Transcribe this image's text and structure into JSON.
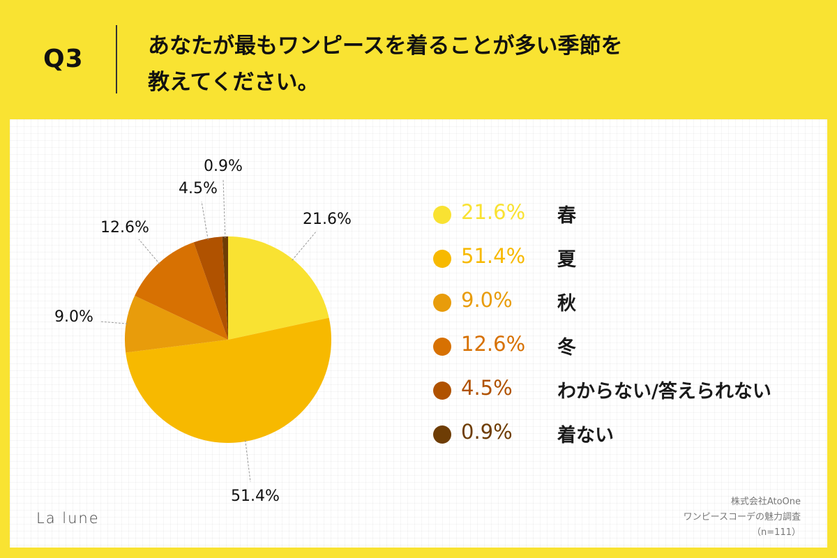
{
  "header": {
    "question_number": "Q3",
    "question_line1": "あなたが最もワンピースを着ることが多い季節を",
    "question_line2": "教えてください。"
  },
  "chart_data": {
    "type": "pie",
    "slices": [
      {
        "label": "春",
        "value": 21.6,
        "display": "21.6%",
        "color": "#f9e232"
      },
      {
        "label": "夏",
        "value": 51.4,
        "display": "51.4%",
        "color": "#f7b900"
      },
      {
        "label": "秋",
        "value": 9.0,
        "display": "9.0%",
        "color": "#e89c0b"
      },
      {
        "label": "冬",
        "value": 12.6,
        "display": "12.6%",
        "color": "#d77102"
      },
      {
        "label": "わからない/答えられない",
        "value": 4.5,
        "display": "4.5%",
        "color": "#b05200"
      },
      {
        "label": "着ない",
        "value": 0.9,
        "display": "0.9%",
        "color": "#6e3d05"
      }
    ],
    "start": "12 o'clock",
    "direction": "clockwise"
  },
  "logo": "La lune",
  "source": {
    "line1": "株式会社AtoOne",
    "line2": "ワンピースコーデの魅力調査",
    "line3": "（n=111）"
  }
}
